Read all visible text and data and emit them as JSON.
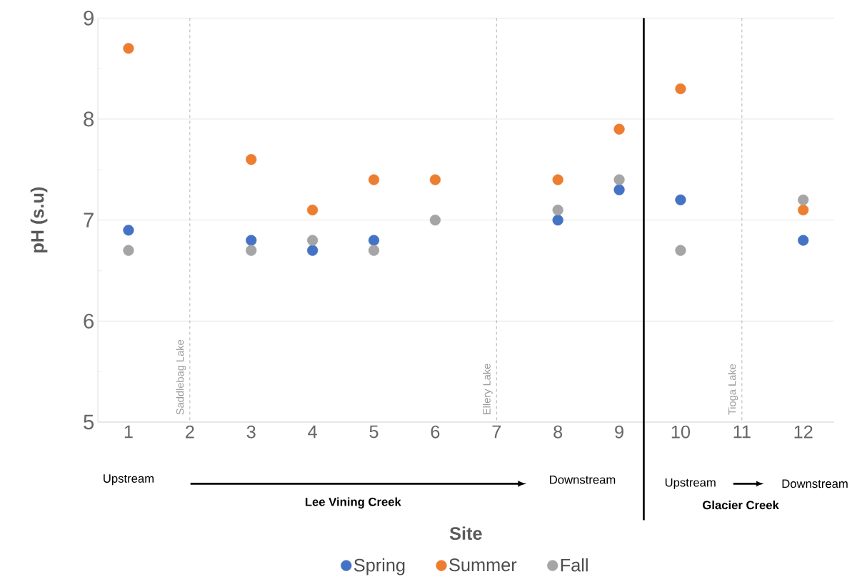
{
  "chart_data": {
    "type": "scatter",
    "xlabel": "Site",
    "ylabel": "pH (s.u)",
    "x": [
      1,
      3,
      4,
      5,
      6,
      8,
      9,
      10,
      12
    ],
    "series": [
      {
        "name": "Spring",
        "color": "#4472c4",
        "values": [
          6.9,
          6.8,
          6.7,
          6.8,
          null,
          7.0,
          7.3,
          7.2,
          6.8
        ]
      },
      {
        "name": "Summer",
        "color": "#ed7d31",
        "values": [
          8.7,
          7.6,
          7.1,
          7.4,
          7.4,
          7.4,
          7.9,
          8.3,
          7.1
        ]
      },
      {
        "name": "Fall",
        "color": "#a5a5a5",
        "values": [
          6.7,
          6.7,
          6.8,
          6.7,
          7.0,
          7.1,
          7.4,
          6.7,
          7.2
        ]
      }
    ],
    "xlim": [
      0.5,
      12.5
    ],
    "xticks": [
      1,
      2,
      3,
      4,
      5,
      6,
      7,
      8,
      9,
      10,
      11,
      12
    ],
    "ylim": [
      5,
      9
    ],
    "yticks": [
      5,
      6,
      7,
      8,
      9
    ],
    "grid": "y",
    "legend": "bottom",
    "marker": "circle",
    "ref_lines": [
      {
        "axis": "x",
        "value": 2,
        "label": "Saddlebag Lake",
        "color": "#a0a0a0",
        "line_style": "dashed"
      },
      {
        "axis": "x",
        "value": 7,
        "label": "Ellery Lake",
        "color": "#a0a0a0",
        "line_style": "dashed"
      },
      {
        "axis": "x",
        "value": 11,
        "label": "Tioga Lake",
        "color": "#a0a0a0",
        "line_style": "dashed"
      },
      {
        "axis": "x",
        "value": 9.4,
        "label": null,
        "color": "#000000",
        "line_style": "solid"
      }
    ],
    "annotations": [
      "Upstream",
      "Downstream",
      "**Lee Vining Creek**",
      "Upstream",
      "Downstream",
      "**Glacier Creek**"
    ]
  }
}
